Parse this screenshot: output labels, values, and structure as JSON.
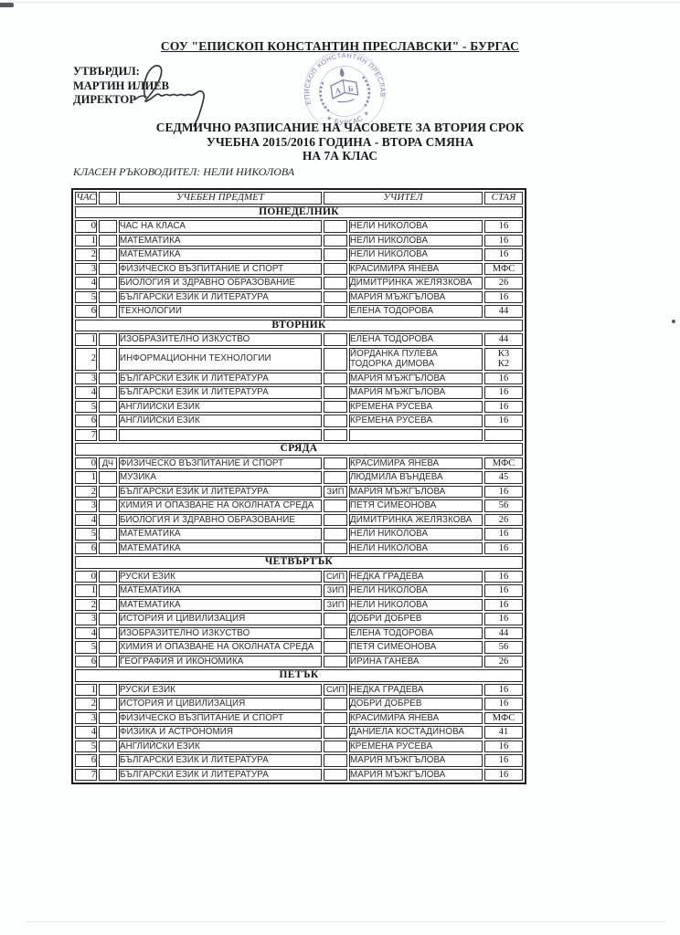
{
  "page": {
    "school_header": "СОУ \"ЕПИСКОП КОНСТАНТИН ПРЕСЛАВСКИ\" - БУРГАС",
    "approved_lines": [
      "УТВЪРДИЛ:",
      "МАРТИН ИЛИЕВ",
      "ДИРЕКТОР"
    ],
    "title_lines": [
      "СЕДМИЧНО РАЗПИСАНИЕ НА ЧАСОВЕТЕ ЗА ВТОРИЯ СРОК",
      "УЧЕБНА 2015/2016 ГОДИНА - ВТОРА СМЯНА",
      "НА 7А КЛАС"
    ],
    "class_teacher_line": "КЛАСЕН РЪКОВОДИТЕЛ: НЕЛИ НИКОЛОВА",
    "stamp": {
      "ring_top": "СОУ • ЕПИСКОП КОНСТАНТИН ПРЕСЛАВСКИ •",
      "ring_bottom": "✶ БУРГАС ✶",
      "book_letter_left": "А",
      "book_letter_right": "Б",
      "color": "#6064ad"
    },
    "ink_color": "#33383f"
  },
  "table": {
    "headers": {
      "hour": "ЧАС",
      "subject": "УЧЕБЕН ПРЕДМЕТ",
      "teacher": "УЧИТЕЛ",
      "room": "СТАЯ"
    },
    "days": [
      {
        "name": "ПОНЕДЕЛНИК",
        "rows": [
          {
            "hour": "0",
            "tag1": "",
            "subject": "ЧАС НА КЛАСА",
            "tag2": "",
            "teachers": [
              "НЕЛИ НИКОЛОВА"
            ],
            "rooms": [
              "16"
            ]
          },
          {
            "hour": "1",
            "tag1": "",
            "subject": "МАТЕМАТИКА",
            "tag2": "",
            "teachers": [
              "НЕЛИ НИКОЛОВА"
            ],
            "rooms": [
              "16"
            ]
          },
          {
            "hour": "2",
            "tag1": "",
            "subject": "МАТЕМАТИКА",
            "tag2": "",
            "teachers": [
              "НЕЛИ НИКОЛОВА"
            ],
            "rooms": [
              "16"
            ]
          },
          {
            "hour": "3",
            "tag1": "",
            "subject": "ФИЗИЧЕСКО ВЪЗПИТАНИЕ И СПОРТ",
            "tag2": "",
            "teachers": [
              "КРАСИМИРА ЯНЕВА"
            ],
            "rooms": [
              "МФС"
            ]
          },
          {
            "hour": "4",
            "tag1": "",
            "subject": "БИОЛОГИЯ И ЗДРАВНО ОБРАЗОВАНИЕ",
            "tag2": "",
            "teachers": [
              "ДИМИТРИНКА ЖЕЛЯЗКОВА"
            ],
            "rooms": [
              "26"
            ]
          },
          {
            "hour": "5",
            "tag1": "",
            "subject": "БЪЛГАРСКИ ЕЗИК И ЛИТЕРАТУРА",
            "tag2": "",
            "teachers": [
              "МАРИЯ МЪЖГЪЛОВА"
            ],
            "rooms": [
              "16"
            ]
          },
          {
            "hour": "6",
            "tag1": "",
            "subject": "ТЕХНОЛОГИИ",
            "tag2": "",
            "teachers": [
              "ЕЛЕНА ТОДОРОВА"
            ],
            "rooms": [
              "44"
            ]
          }
        ]
      },
      {
        "name": "ВТОРНИК",
        "rows": [
          {
            "hour": "1",
            "tag1": "",
            "subject": "ИЗОБРАЗИТЕЛНО ИЗКУСТВО",
            "tag2": "",
            "teachers": [
              "ЕЛЕНА ТОДОРОВА"
            ],
            "rooms": [
              "44"
            ]
          },
          {
            "hour": "2",
            "tag1": "",
            "subject": "ИНФОРМАЦИОННИ ТЕХНОЛОГИИ",
            "tag2": "",
            "teachers": [
              "ЙОРДАНКА ПУЛЕВА",
              "ТОДОРКА ДИМОВА"
            ],
            "rooms": [
              "К3",
              "К2"
            ]
          },
          {
            "hour": "3",
            "tag1": "",
            "subject": "БЪЛГАРСКИ ЕЗИК И ЛИТЕРАТУРА",
            "tag2": "",
            "teachers": [
              "МАРИЯ МЪЖГЪЛОВА"
            ],
            "rooms": [
              "16"
            ]
          },
          {
            "hour": "4",
            "tag1": "",
            "subject": "БЪЛГАРСКИ ЕЗИК И ЛИТЕРАТУРА",
            "tag2": "",
            "teachers": [
              "МАРИЯ МЪЖГЪЛОВА"
            ],
            "rooms": [
              "16"
            ]
          },
          {
            "hour": "5",
            "tag1": "",
            "subject": "АНГЛИЙСКИ ЕЗИК",
            "tag2": "",
            "teachers": [
              "КРЕМЕНА РУСЕВА"
            ],
            "rooms": [
              "16"
            ]
          },
          {
            "hour": "6",
            "tag1": "",
            "subject": "АНГЛИЙСКИ ЕЗИК",
            "tag2": "",
            "teachers": [
              "КРЕМЕНА РУСЕВА"
            ],
            "rooms": [
              "16"
            ]
          },
          {
            "hour": "7",
            "tag1": "",
            "subject": "",
            "tag2": "",
            "teachers": [],
            "rooms": []
          }
        ]
      },
      {
        "name": "СРЯДА",
        "rows": [
          {
            "hour": "0",
            "tag1": "ДЧ",
            "subject": "ФИЗИЧЕСКО ВЪЗПИТАНИЕ И СПОРТ",
            "tag2": "",
            "teachers": [
              "КРАСИМИРА ЯНЕВА"
            ],
            "rooms": [
              "МФС"
            ]
          },
          {
            "hour": "1",
            "tag1": "",
            "subject": "МУЗИКА",
            "tag2": "",
            "teachers": [
              "ЛЮДМИЛА ВЪНДЕВА"
            ],
            "rooms": [
              "45"
            ]
          },
          {
            "hour": "2",
            "tag1": "",
            "subject": "БЪЛГАРСКИ ЕЗИК И ЛИТЕРАТУРА",
            "tag2": "ЗИП",
            "teachers": [
              "МАРИЯ МЪЖГЪЛОВА"
            ],
            "rooms": [
              "16"
            ]
          },
          {
            "hour": "3",
            "tag1": "",
            "subject": "ХИМИЯ И ОПАЗВАНЕ НА ОКОЛНАТА СРЕДА",
            "tag2": "",
            "teachers": [
              "ПЕТЯ СИМЕОНОВА"
            ],
            "rooms": [
              "56"
            ]
          },
          {
            "hour": "4",
            "tag1": "",
            "subject": "БИОЛОГИЯ И ЗДРАВНО ОБРАЗОВАНИЕ",
            "tag2": "",
            "teachers": [
              "ДИМИТРИНКА ЖЕЛЯЗКОВА"
            ],
            "rooms": [
              "26"
            ]
          },
          {
            "hour": "5",
            "tag1": "",
            "subject": "МАТЕМАТИКА",
            "tag2": "",
            "teachers": [
              "НЕЛИ НИКОЛОВА"
            ],
            "rooms": [
              "16"
            ]
          },
          {
            "hour": "6",
            "tag1": "",
            "subject": "МАТЕМАТИКА",
            "tag2": "",
            "teachers": [
              "НЕЛИ НИКОЛОВА"
            ],
            "rooms": [
              "16"
            ]
          }
        ]
      },
      {
        "name": "ЧЕТВЪРТЪК",
        "rows": [
          {
            "hour": "0",
            "tag1": "",
            "subject": "РУСКИ ЕЗИК",
            "tag2": "СИП",
            "teachers": [
              "НЕДКА ГРАДЕВА"
            ],
            "rooms": [
              "16"
            ]
          },
          {
            "hour": "1",
            "tag1": "",
            "subject": "МАТЕМАТИКА",
            "tag2": "ЗИП",
            "teachers": [
              "НЕЛИ НИКОЛОВА"
            ],
            "rooms": [
              "16"
            ]
          },
          {
            "hour": "2",
            "tag1": "",
            "subject": "МАТЕМАТИКА",
            "tag2": "ЗИП",
            "teachers": [
              "НЕЛИ НИКОЛОВА"
            ],
            "rooms": [
              "16"
            ]
          },
          {
            "hour": "3",
            "tag1": "",
            "subject": "ИСТОРИЯ И ЦИВИЛИЗАЦИЯ",
            "tag2": "",
            "teachers": [
              "ДОБРИ ДОБРЕВ"
            ],
            "rooms": [
              "16"
            ]
          },
          {
            "hour": "4",
            "tag1": "",
            "subject": "ИЗОБРАЗИТЕЛНО ИЗКУСТВО",
            "tag2": "",
            "teachers": [
              "ЕЛЕНА ТОДОРОВА"
            ],
            "rooms": [
              "44"
            ]
          },
          {
            "hour": "5",
            "tag1": "",
            "subject": "ХИМИЯ И ОПАЗВАНЕ НА ОКОЛНАТА СРЕДА",
            "tag2": "",
            "teachers": [
              "ПЕТЯ СИМЕОНОВА"
            ],
            "rooms": [
              "56"
            ]
          },
          {
            "hour": "6",
            "tag1": "",
            "subject": "ГЕОГРАФИЯ И ИКОНОМИКА",
            "tag2": "",
            "teachers": [
              "ИРИНА ГАНЕВА"
            ],
            "rooms": [
              "26"
            ]
          }
        ]
      },
      {
        "name": "ПЕТЪК",
        "rows": [
          {
            "hour": "1",
            "tag1": "",
            "subject": "РУСКИ ЕЗИК",
            "tag2": "СИП",
            "teachers": [
              "НЕДКА ГРАДЕВА"
            ],
            "rooms": [
              "16"
            ]
          },
          {
            "hour": "2",
            "tag1": "",
            "subject": "ИСТОРИЯ И ЦИВИЛИЗАЦИЯ",
            "tag2": "",
            "teachers": [
              "ДОБРИ ДОБРЕВ"
            ],
            "rooms": [
              "16"
            ]
          },
          {
            "hour": "3",
            "tag1": "",
            "subject": "ФИЗИЧЕСКО ВЪЗПИТАНИЕ И СПОРТ",
            "tag2": "",
            "teachers": [
              "КРАСИМИРА ЯНЕВА"
            ],
            "rooms": [
              "МФС"
            ]
          },
          {
            "hour": "4",
            "tag1": "",
            "subject": "ФИЗИКА И АСТРОНОМИЯ",
            "tag2": "",
            "teachers": [
              "ДАНИЕЛА КОСТАДИНОВА"
            ],
            "rooms": [
              "41"
            ]
          },
          {
            "hour": "5",
            "tag1": "",
            "subject": "АНГЛИЙСКИ ЕЗИК",
            "tag2": "",
            "teachers": [
              "КРЕМЕНА РУСЕВА"
            ],
            "rooms": [
              "16"
            ]
          },
          {
            "hour": "6",
            "tag1": "",
            "subject": "БЪЛГАРСКИ ЕЗИК И ЛИТЕРАТУРА",
            "tag2": "",
            "teachers": [
              "МАРИЯ МЪЖГЪЛОВА"
            ],
            "rooms": [
              "16"
            ]
          },
          {
            "hour": "7",
            "tag1": "",
            "subject": "БЪЛГАРСКИ ЕЗИК И ЛИТЕРАТУРА",
            "tag2": "",
            "teachers": [
              "МАРИЯ МЪЖГЪЛОВА"
            ],
            "rooms": [
              "16"
            ]
          }
        ]
      }
    ]
  }
}
